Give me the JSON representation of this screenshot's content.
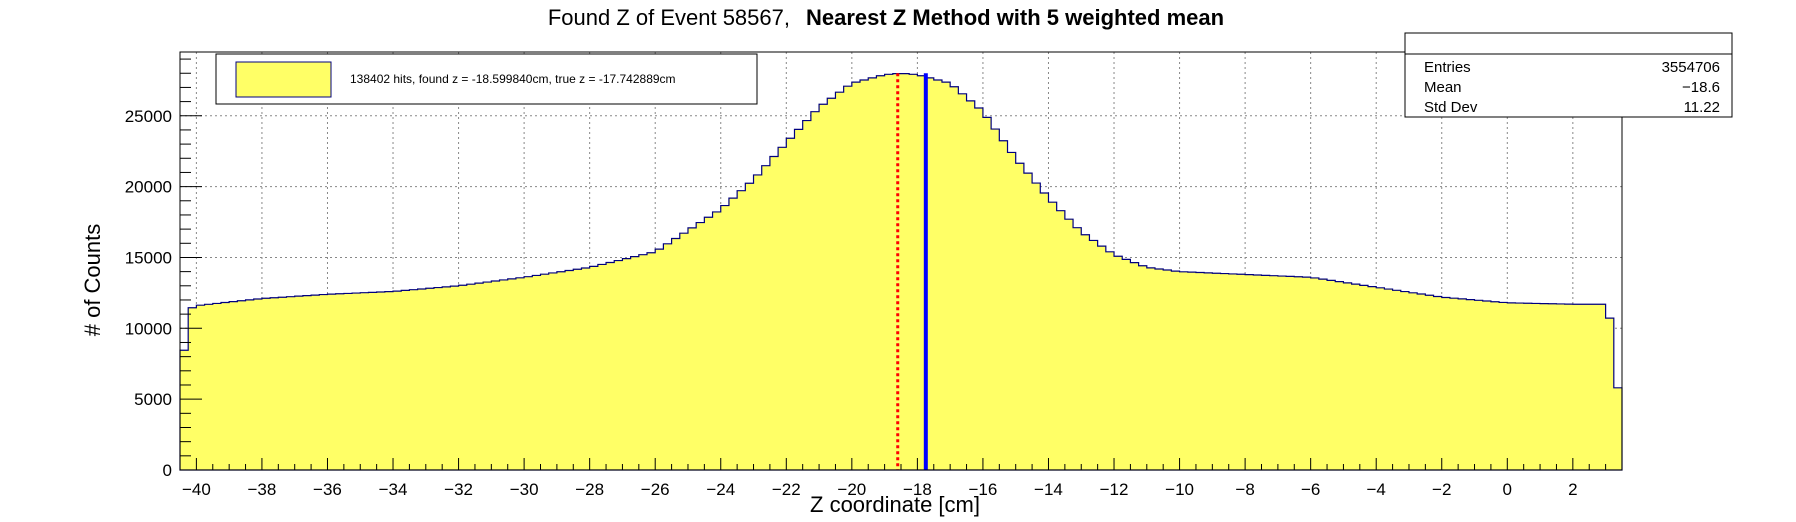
{
  "chart_data": {
    "type": "bar",
    "title": "Found Z of Event 58567,",
    "subtitle": "Nearest Z Method with 5 weighted mean",
    "xlabel": "Z coordinate [cm]",
    "ylabel": "# of Counts",
    "xlim": [
      -40.5,
      3.5
    ],
    "ylim": [
      0,
      29500
    ],
    "x_ticks": [
      -40,
      -38,
      -36,
      -34,
      -32,
      -30,
      -28,
      -26,
      -24,
      -22,
      -20,
      -18,
      -16,
      -14,
      -12,
      -10,
      -8,
      -6,
      -4,
      -2,
      0,
      2
    ],
    "y_ticks": [
      0,
      5000,
      10000,
      15000,
      20000,
      25000
    ],
    "grid": true,
    "legend_position": "top-left",
    "series": [
      {
        "name": "138402 hits, found z = -18.599840cm, true z = -17.742889cm",
        "color": "#ffff66",
        "line_color": "#00007f",
        "x": [
          -40.5,
          -40.25,
          -40,
          -38,
          -36,
          -34,
          -32,
          -30,
          -28,
          -26,
          -24,
          -23,
          -22,
          -21,
          -20,
          -19,
          -18.5,
          -18,
          -17,
          -16,
          -15,
          -14,
          -13,
          -12,
          -11,
          -10,
          -8,
          -6,
          -4,
          -2,
          0,
          2,
          3.1,
          3.25
        ],
        "values": [
          5600,
          11300,
          11600,
          12100,
          12400,
          12600,
          13000,
          13600,
          14300,
          15400,
          18400,
          20500,
          23100,
          25600,
          27300,
          27900,
          28000,
          27900,
          27300,
          25300,
          22000,
          19200,
          16800,
          15200,
          14300,
          14000,
          13800,
          13600,
          12900,
          12200,
          11800,
          11700,
          11700,
          5800
        ]
      }
    ],
    "markers": [
      {
        "label": "found z",
        "x": -18.59984,
        "color": "#ff0000",
        "style": "dotted"
      },
      {
        "label": "true z",
        "x": -17.742889,
        "color": "#0000ff",
        "style": "solid"
      }
    ],
    "stats_box": {
      "rows": [
        {
          "label": "Entries",
          "value": "3554706"
        },
        {
          "label": "Mean",
          "value": "−18.6"
        },
        {
          "label": "Std Dev",
          "value": "11.22"
        }
      ]
    }
  }
}
